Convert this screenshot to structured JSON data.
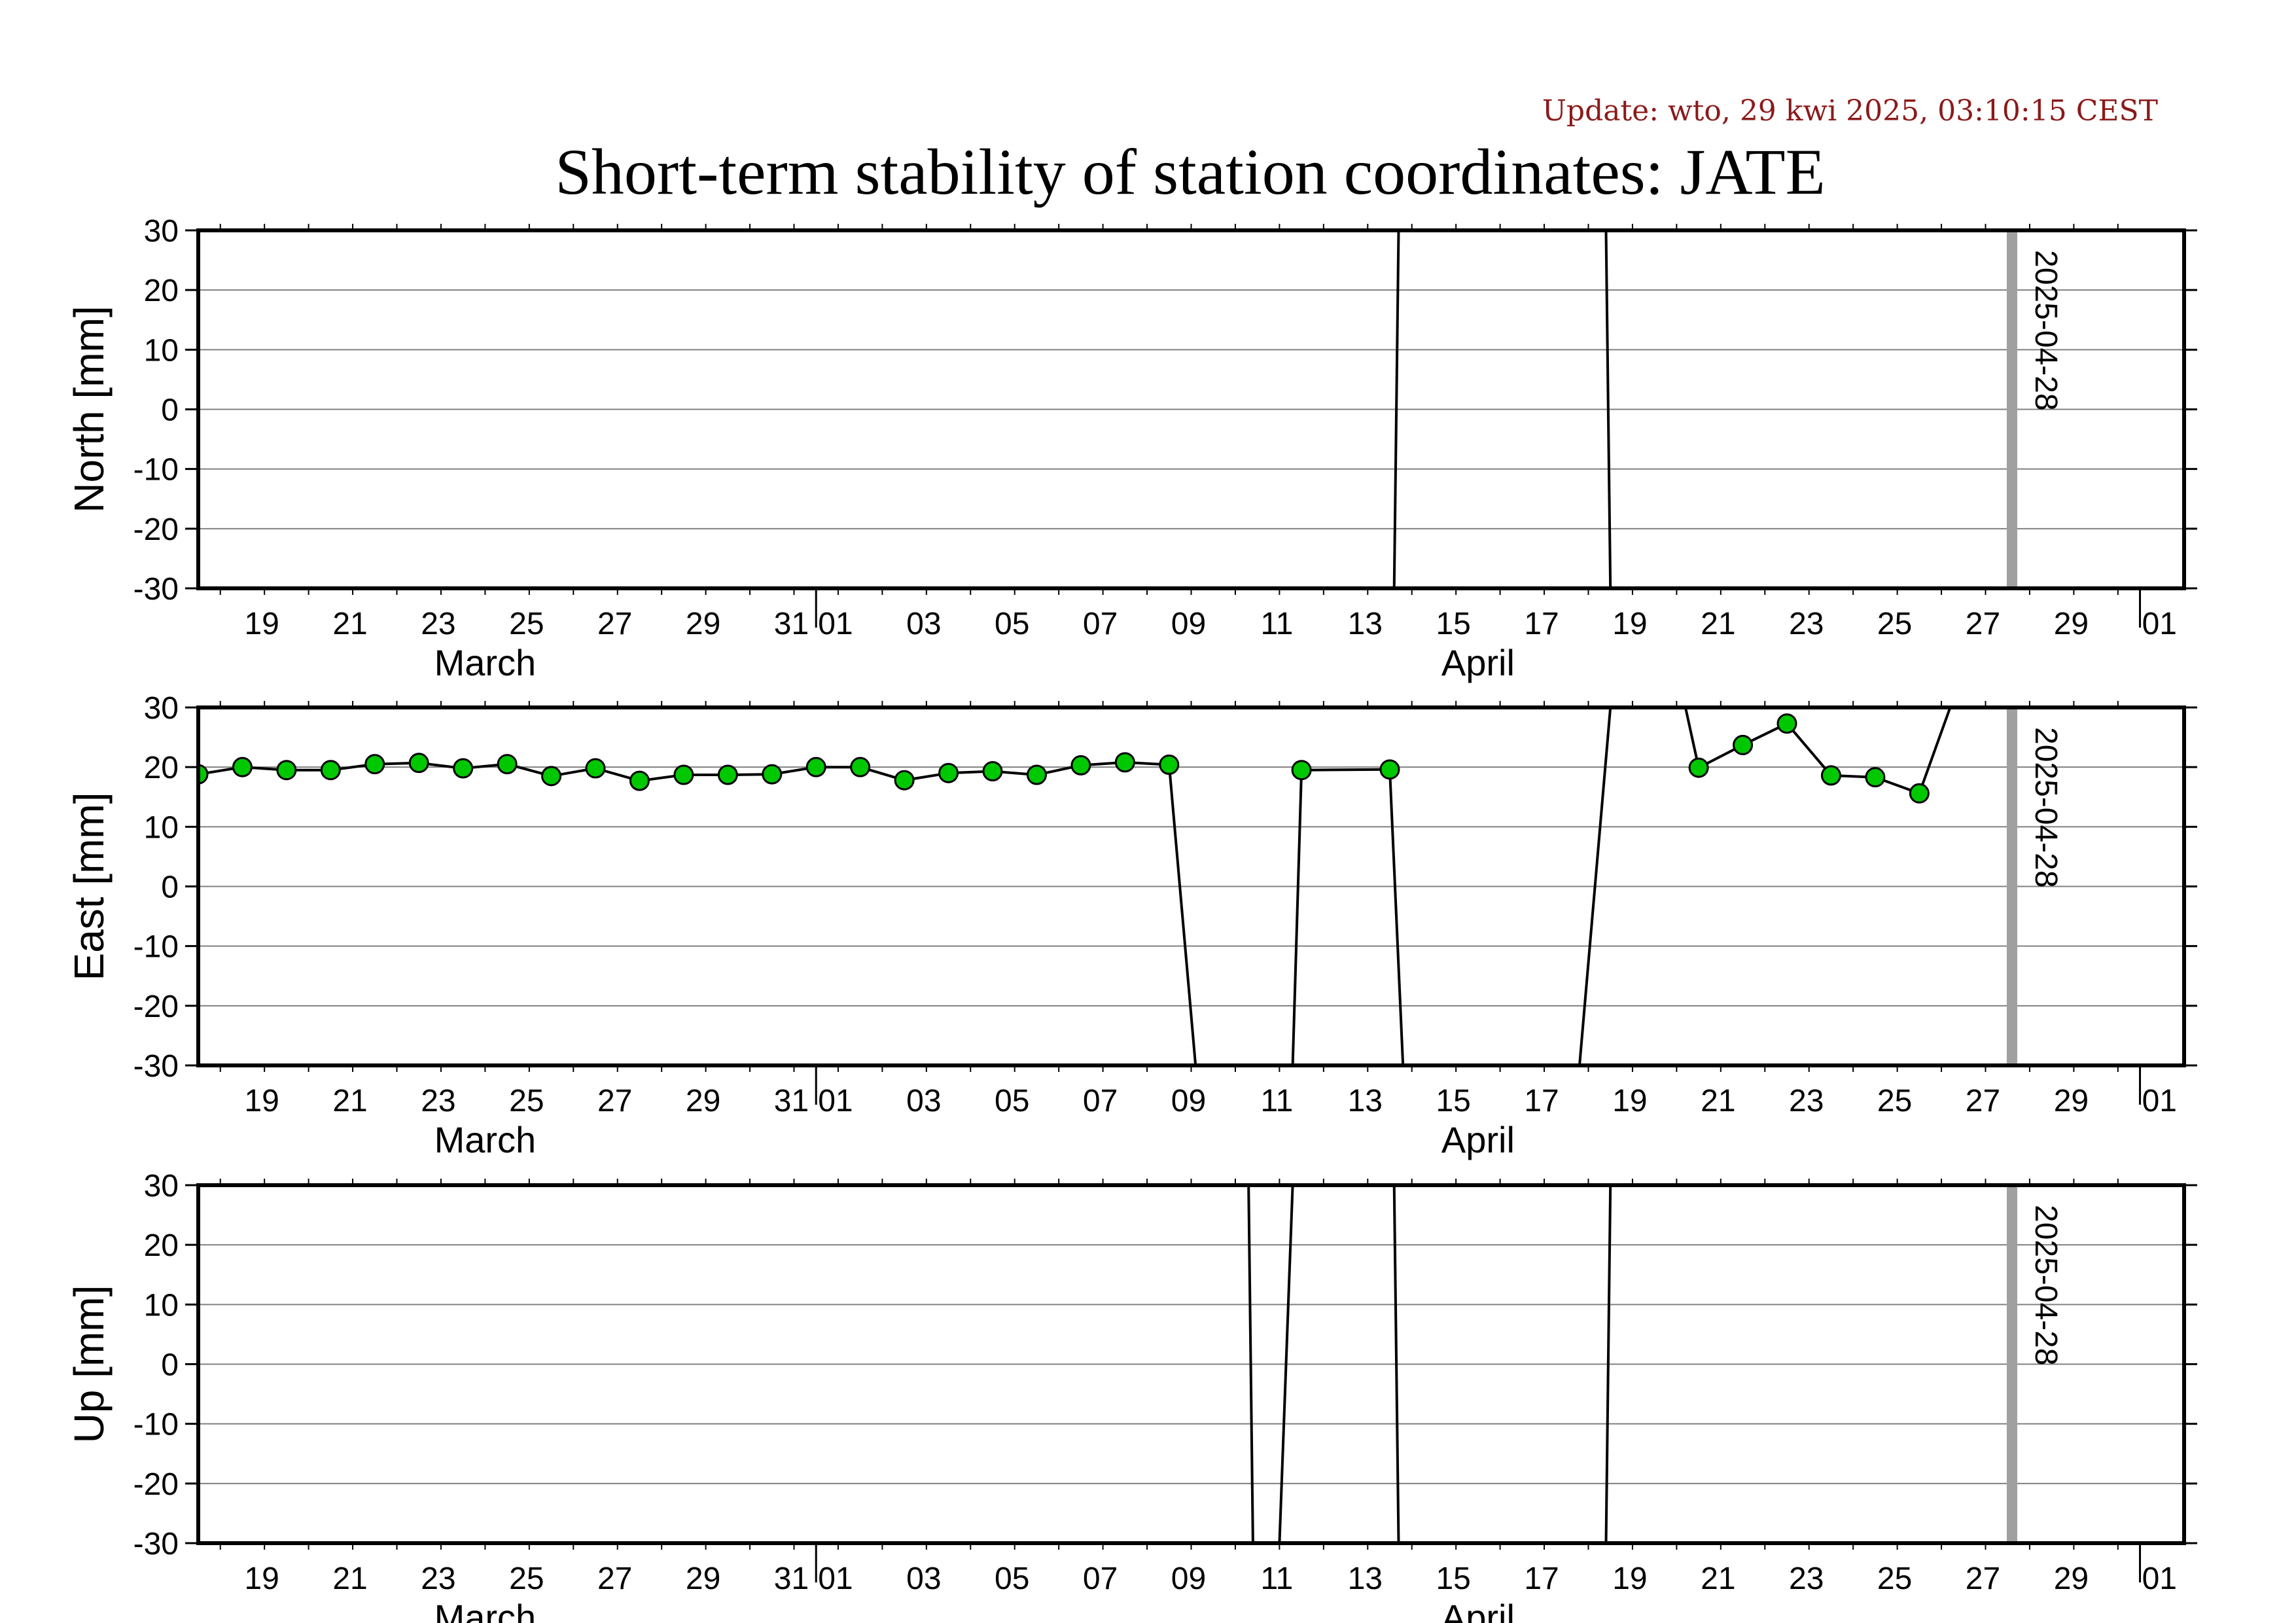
{
  "update_text": "Update: wto, 29 kwi 2025, 03:10:15 CEST",
  "title": "Short-term stability of station coordinates: JATE",
  "marker_label": "2025-04-28",
  "x_tick_labels": [
    "19",
    "21",
    "23",
    "25",
    "27",
    "29",
    "31",
    "01",
    "03",
    "05",
    "07",
    "09",
    "11",
    "13",
    "15",
    "17",
    "19",
    "21",
    "23",
    "25",
    "27",
    "29",
    "01"
  ],
  "month_labels": [
    "March",
    "April"
  ],
  "colors": {
    "point_fill": "#00c800",
    "marker_line": "#a0a0a0",
    "update_text": "#8b1a1a",
    "grid": "#808080"
  },
  "chart_data": [
    {
      "type": "line",
      "ylabel": "North [mm]",
      "ylim": [
        -30,
        30
      ],
      "yticks": [
        -30,
        -20,
        -10,
        0,
        10,
        20,
        30
      ],
      "xlim": [
        "2025-03-17.5",
        "2025-05-01.5"
      ],
      "grid": true,
      "points": [],
      "segments": [
        [
          [
            "2025-04-13.6",
            -30
          ],
          [
            "2025-04-13.7",
            30
          ]
        ],
        [
          [
            "2025-04-18.4",
            30
          ],
          [
            "2025-04-18.5",
            -30
          ]
        ]
      ]
    },
    {
      "type": "line",
      "ylabel": "East [mm]",
      "ylim": [
        -30,
        30
      ],
      "yticks": [
        -30,
        -20,
        -10,
        0,
        10,
        20,
        30
      ],
      "xlim": [
        "2025-03-17.5",
        "2025-05-01.5"
      ],
      "grid": true,
      "points": [
        [
          "2025-03-17.5",
          18.8
        ],
        [
          "2025-03-18.5",
          20.0
        ],
        [
          "2025-03-19.5",
          19.5
        ],
        [
          "2025-03-20.5",
          19.5
        ],
        [
          "2025-03-21.5",
          20.5
        ],
        [
          "2025-03-22.5",
          20.7
        ],
        [
          "2025-03-23.5",
          19.8
        ],
        [
          "2025-03-24.5",
          20.5
        ],
        [
          "2025-03-25.5",
          18.5
        ],
        [
          "2025-03-26.5",
          19.8
        ],
        [
          "2025-03-27.5",
          17.7
        ],
        [
          "2025-03-28.5",
          18.7
        ],
        [
          "2025-03-29.5",
          18.7
        ],
        [
          "2025-03-30.5",
          18.8
        ],
        [
          "2025-03-31.5",
          20.0
        ],
        [
          "2025-04-01.5",
          20.0
        ],
        [
          "2025-04-02.5",
          17.8
        ],
        [
          "2025-04-03.5",
          19.0
        ],
        [
          "2025-04-04.5",
          19.3
        ],
        [
          "2025-04-05.5",
          18.7
        ],
        [
          "2025-04-06.5",
          20.3
        ],
        [
          "2025-04-07.5",
          20.8
        ],
        [
          "2025-04-08.5",
          20.4
        ],
        [
          "2025-04-11.5",
          19.5
        ],
        [
          "2025-04-13.5",
          19.6
        ],
        [
          "2025-04-20.5",
          19.9
        ],
        [
          "2025-04-21.5",
          23.7
        ],
        [
          "2025-04-22.5",
          27.3
        ],
        [
          "2025-04-23.5",
          18.6
        ],
        [
          "2025-04-24.5",
          18.3
        ],
        [
          "2025-04-25.5",
          15.6
        ]
      ],
      "segments": [
        [
          [
            "2025-03-17.5",
            18.8
          ],
          [
            "2025-03-18.5",
            20.0
          ],
          [
            "2025-03-19.5",
            19.5
          ],
          [
            "2025-03-20.5",
            19.5
          ],
          [
            "2025-03-21.5",
            20.5
          ],
          [
            "2025-03-22.5",
            20.7
          ],
          [
            "2025-03-23.5",
            19.8
          ],
          [
            "2025-03-24.5",
            20.5
          ],
          [
            "2025-03-25.5",
            18.5
          ],
          [
            "2025-03-26.5",
            19.8
          ],
          [
            "2025-03-27.5",
            17.7
          ],
          [
            "2025-03-28.5",
            18.7
          ],
          [
            "2025-03-29.5",
            18.7
          ],
          [
            "2025-03-30.5",
            18.8
          ],
          [
            "2025-03-31.5",
            20.0
          ],
          [
            "2025-04-01.5",
            20.0
          ],
          [
            "2025-04-02.5",
            17.8
          ],
          [
            "2025-04-03.5",
            19.0
          ],
          [
            "2025-04-04.5",
            19.3
          ],
          [
            "2025-04-05.5",
            18.7
          ],
          [
            "2025-04-06.5",
            20.3
          ],
          [
            "2025-04-07.5",
            20.8
          ],
          [
            "2025-04-08.5",
            20.4
          ],
          [
            "2025-04-09.1",
            -30
          ]
        ],
        [
          [
            "2025-04-11.3",
            -30
          ],
          [
            "2025-04-11.5",
            19.5
          ],
          [
            "2025-04-13.5",
            19.6
          ],
          [
            "2025-04-13.8",
            -30
          ]
        ],
        [
          [
            "2025-04-17.8",
            -30
          ],
          [
            "2025-04-18.5",
            30
          ]
        ],
        [
          [
            "2025-04-20.2",
            30
          ],
          [
            "2025-04-20.5",
            19.9
          ],
          [
            "2025-04-21.5",
            23.7
          ],
          [
            "2025-04-22.5",
            27.3
          ],
          [
            "2025-04-23.5",
            18.6
          ],
          [
            "2025-04-24.5",
            18.3
          ],
          [
            "2025-04-25.5",
            15.6
          ],
          [
            "2025-04-26.2",
            30
          ]
        ]
      ]
    },
    {
      "type": "line",
      "ylabel": "Up [mm]",
      "ylim": [
        -30,
        30
      ],
      "yticks": [
        -30,
        -20,
        -10,
        0,
        10,
        20,
        30
      ],
      "xlim": [
        "2025-03-17.5",
        "2025-05-01.5"
      ],
      "grid": true,
      "points": [],
      "segments": [
        [
          [
            "2025-04-10.3",
            30
          ],
          [
            "2025-04-10.4",
            -30
          ]
        ],
        [
          [
            "2025-04-11.0",
            -30
          ],
          [
            "2025-04-11.3",
            30
          ]
        ],
        [
          [
            "2025-04-13.6",
            30
          ],
          [
            "2025-04-13.7",
            -30
          ]
        ],
        [
          [
            "2025-04-18.4",
            -30
          ],
          [
            "2025-04-18.5",
            30
          ]
        ]
      ]
    }
  ]
}
